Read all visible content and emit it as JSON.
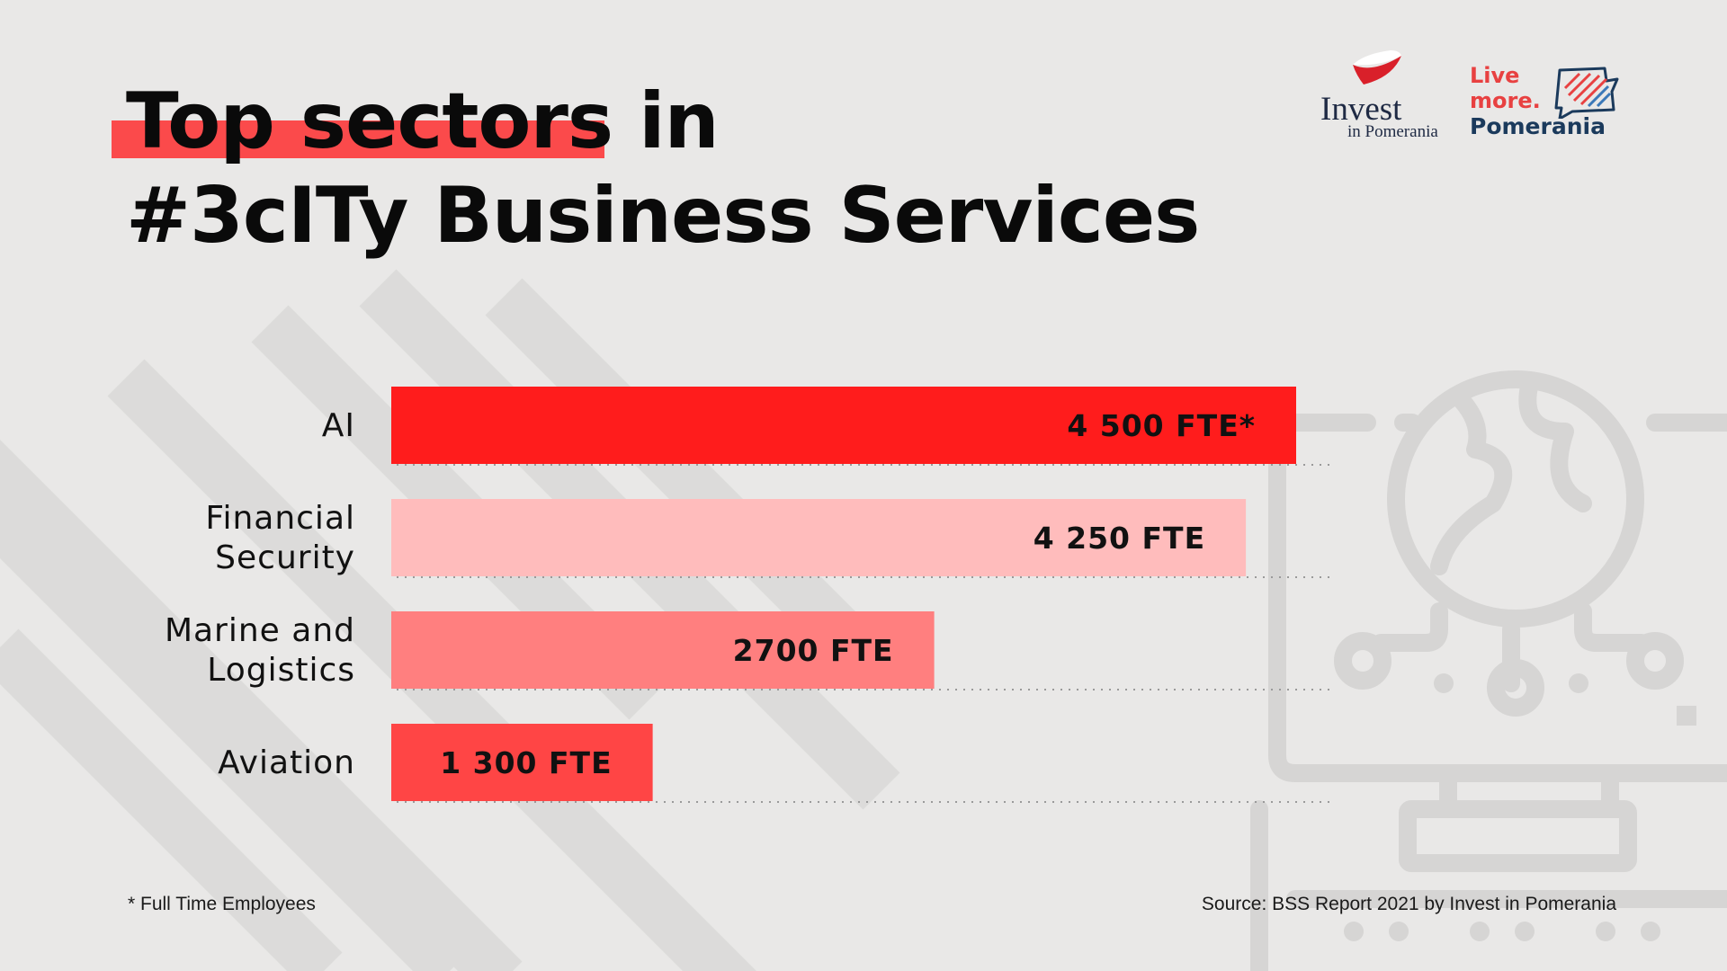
{
  "title": {
    "line1_highlight": "Top sectors",
    "line1_rest": " in",
    "line2": "#3cITy Business Services"
  },
  "logos": {
    "invest": {
      "word": "Invest",
      "sub": "in Pomerania"
    },
    "live_more": {
      "line1": "Live",
      "line2": "more.",
      "line3": "Pomerania"
    }
  },
  "colors": {
    "background": "#e9e8e7",
    "accent": "#ff1c1c",
    "highlight": "#fb4a4b",
    "bar_light": "#ffbcbc",
    "bar_medium": "#ff7f7f",
    "bar_red": "#ff4545",
    "decor": "#d6d5d4"
  },
  "chart_data": {
    "type": "bar",
    "orientation": "horizontal",
    "categories": [
      "AI",
      "Financial Security",
      "Marine and Logistics",
      "Aviation"
    ],
    "category_lines": [
      [
        "AI"
      ],
      [
        "Financial",
        "Security"
      ],
      [
        "Marine and",
        "Logistics"
      ],
      [
        "Aviation"
      ]
    ],
    "values": [
      4500,
      4250,
      2700,
      1300
    ],
    "value_labels": [
      "4 500 FTE*",
      "4 250 FTE",
      "2700 FTE",
      "1 300 FTE"
    ],
    "bar_colors": [
      "#ff1c1c",
      "#ffbcbc",
      "#ff7f7f",
      "#ff4545"
    ],
    "xlim": [
      0,
      4500
    ],
    "title": "Top sectors in #3cITy Business Services",
    "xlabel": "",
    "ylabel": ""
  },
  "footnote": "* Full Time Employees",
  "source": "Source: BSS Report 2021 by Invest in Pomerania"
}
